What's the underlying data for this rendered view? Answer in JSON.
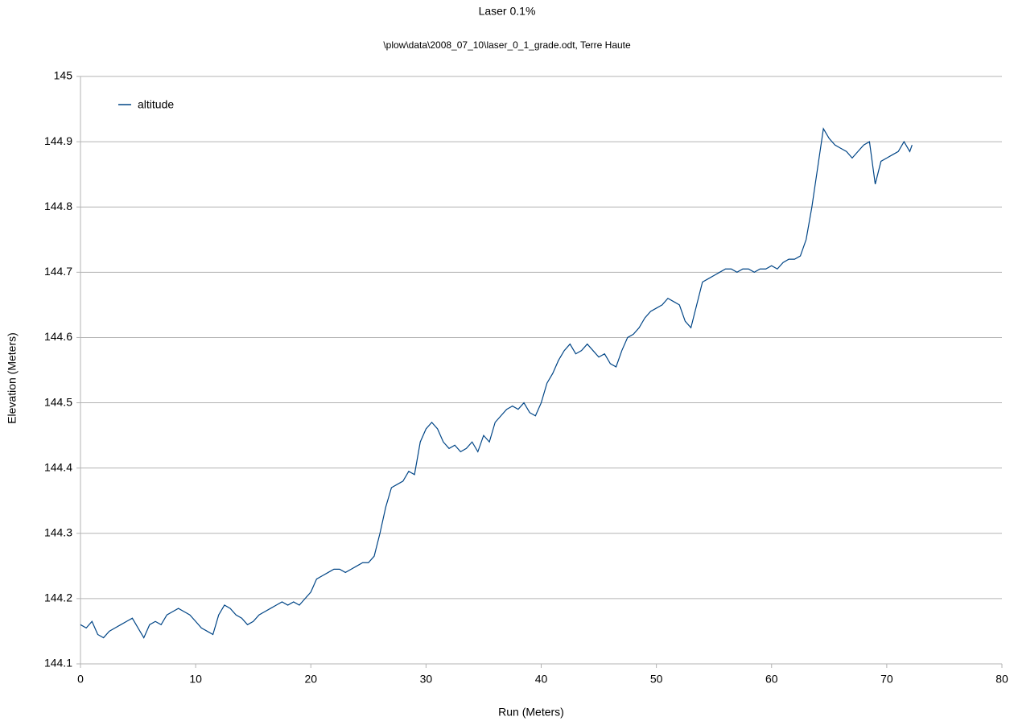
{
  "chart_data": {
    "type": "line",
    "title": "Laser 0.1%",
    "subtitle": "\\plow\\data\\2008_07_10\\laser_0_1_grade.odt, Terre Haute",
    "x_label": "Run (Meters)",
    "y_label": "Elevation (Meters)",
    "xlim": [
      0,
      80
    ],
    "xticks": [
      0,
      10,
      20,
      30,
      40,
      50,
      60,
      70,
      80
    ],
    "ylim": [
      144.1,
      145
    ],
    "yticks": [
      144.1,
      144.2,
      144.3,
      144.4,
      144.5,
      144.6,
      144.7,
      144.8,
      144.9,
      145
    ],
    "grid": true,
    "legend": "top-left",
    "x": [
      0,
      0.5,
      1,
      1.5,
      2,
      2.5,
      3,
      3.5,
      4,
      4.5,
      5,
      5.5,
      6,
      6.5,
      7,
      7.5,
      8,
      8.5,
      9,
      9.5,
      10,
      10.5,
      11,
      11.5,
      12,
      12.5,
      13,
      13.5,
      14,
      14.5,
      15,
      15.5,
      16,
      16.5,
      17,
      17.5,
      18,
      18.5,
      19,
      19.5,
      20,
      20.5,
      21,
      21.5,
      22,
      22.5,
      23,
      23.5,
      24,
      24.5,
      25,
      25.5,
      26,
      26.5,
      27,
      27.5,
      28,
      28.5,
      29,
      29.5,
      30,
      30.5,
      31,
      31.5,
      32,
      32.5,
      33,
      33.5,
      34,
      34.5,
      35,
      35.5,
      36,
      36.5,
      37,
      37.5,
      38,
      38.5,
      39,
      39.5,
      40,
      40.5,
      41,
      41.5,
      42,
      42.5,
      43,
      43.5,
      44,
      44.5,
      45,
      45.5,
      46,
      46.5,
      47,
      47.5,
      48,
      48.5,
      49,
      49.5,
      50,
      50.5,
      51,
      51.5,
      52,
      52.5,
      53,
      53.5,
      54,
      54.5,
      55,
      55.5,
      56,
      56.5,
      57,
      57.5,
      58,
      58.5,
      59,
      59.5,
      60,
      60.5,
      61,
      61.5,
      62,
      62.5,
      63,
      63.5,
      64,
      64.5,
      65,
      65.5,
      66,
      66.5,
      67,
      67.5,
      68,
      68.5,
      69,
      69.5,
      70,
      70.5,
      71,
      71.5,
      72,
      72.2
    ],
    "series": [
      {
        "name": "altitude",
        "color": "#004586",
        "values": [
          144.16,
          144.155,
          144.165,
          144.145,
          144.14,
          144.15,
          144.155,
          144.16,
          144.165,
          144.17,
          144.155,
          144.14,
          144.16,
          144.165,
          144.16,
          144.175,
          144.18,
          144.185,
          144.18,
          144.175,
          144.165,
          144.155,
          144.15,
          144.145,
          144.175,
          144.19,
          144.185,
          144.175,
          144.17,
          144.16,
          144.165,
          144.175,
          144.18,
          144.185,
          144.19,
          144.195,
          144.19,
          144.195,
          144.19,
          144.2,
          144.21,
          144.23,
          144.235,
          144.24,
          144.245,
          144.245,
          144.24,
          144.245,
          144.25,
          144.255,
          144.255,
          144.265,
          144.3,
          144.34,
          144.37,
          144.375,
          144.38,
          144.395,
          144.39,
          144.44,
          144.46,
          144.47,
          144.46,
          144.44,
          144.43,
          144.435,
          144.425,
          144.43,
          144.44,
          144.425,
          144.45,
          144.44,
          144.47,
          144.48,
          144.49,
          144.495,
          144.49,
          144.5,
          144.485,
          144.48,
          144.5,
          144.53,
          144.545,
          144.565,
          144.58,
          144.59,
          144.575,
          144.58,
          144.59,
          144.58,
          144.57,
          144.575,
          144.56,
          144.555,
          144.58,
          144.6,
          144.605,
          144.615,
          144.63,
          144.64,
          144.645,
          144.65,
          144.66,
          144.655,
          144.65,
          144.625,
          144.615,
          144.65,
          144.685,
          144.69,
          144.695,
          144.7,
          144.705,
          144.705,
          144.7,
          144.705,
          144.705,
          144.7,
          144.705,
          144.705,
          144.71,
          144.705,
          144.715,
          144.72,
          144.72,
          144.725,
          144.75,
          144.8,
          144.86,
          144.92,
          144.905,
          144.895,
          144.89,
          144.885,
          144.875,
          144.885,
          144.895,
          144.9,
          144.835,
          144.87,
          144.875,
          144.88,
          144.885,
          144.9,
          144.885,
          144.895
        ]
      }
    ]
  }
}
